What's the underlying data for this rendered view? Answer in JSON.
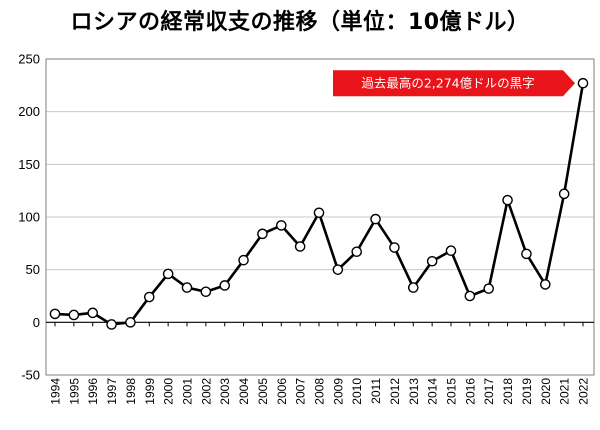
{
  "chart_data": {
    "type": "line",
    "title": "ロシアの経常収支の推移（単位：10億ドル）",
    "xlabel": "",
    "ylabel": "",
    "ylim": [
      -50,
      250
    ],
    "yticks": [
      -50,
      0,
      50,
      100,
      150,
      200,
      250
    ],
    "grid": "horizontal",
    "x": [
      "1994",
      "1995",
      "1996",
      "1997",
      "1998",
      "1999",
      "2000",
      "2001",
      "2002",
      "2003",
      "2004",
      "2005",
      "2006",
      "2007",
      "2008",
      "2009",
      "2010",
      "2011",
      "2012",
      "2013",
      "2014",
      "2015",
      "2016",
      "2017",
      "2018",
      "2019",
      "2020",
      "2021",
      "2022"
    ],
    "series": [
      {
        "values": [
          8,
          7,
          9,
          -2,
          0,
          24,
          46,
          33,
          29,
          35,
          59,
          84,
          92,
          72,
          104,
          50,
          67,
          98,
          71,
          33,
          58,
          68,
          25,
          32,
          116,
          65,
          36,
          122,
          227
        ]
      }
    ],
    "annotation": {
      "text": "過去最高の2,274億ドルの黒字",
      "color": "#e8141a",
      "target": "2022"
    }
  }
}
